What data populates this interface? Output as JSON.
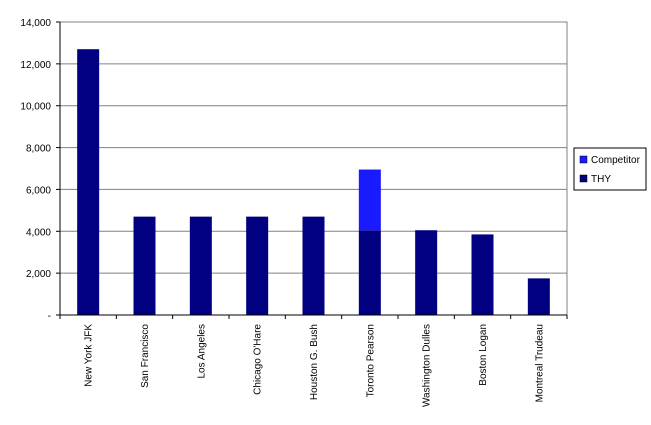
{
  "chart_data": {
    "type": "bar",
    "stacked": true,
    "categories": [
      "New York JFK",
      "San Francisco",
      "Los Angeles",
      "Chicago O'Hare",
      "Houston G. Bush",
      "Toronto Pearson",
      "Washington Dulles",
      "Boston Logan",
      "Montreal Trudeau"
    ],
    "series": [
      {
        "name": "THY",
        "color": "#000080",
        "values": [
          12700,
          4700,
          4700,
          4700,
          4700,
          4050,
          4050,
          3850,
          1750
        ]
      },
      {
        "name": "Competitor",
        "color": "#1a1aff",
        "values": [
          0,
          0,
          0,
          0,
          0,
          2900,
          0,
          0,
          0
        ]
      }
    ],
    "ylim": [
      0,
      14000
    ],
    "yticks": [
      0,
      2000,
      4000,
      6000,
      8000,
      10000,
      12000,
      14000
    ],
    "ytick_labels": [
      "-",
      "2,000",
      "4,000",
      "6,000",
      "8,000",
      "10,000",
      "12,000",
      "14,000"
    ],
    "grid": true,
    "legend_position": "right"
  }
}
